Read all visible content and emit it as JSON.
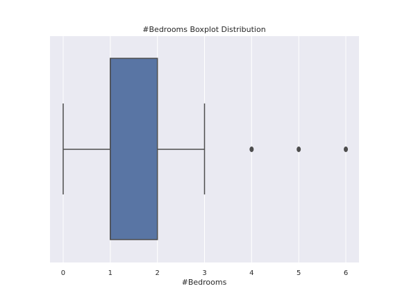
{
  "chart_data": {
    "type": "boxplot",
    "title": "#Bedrooms Boxplot Distribution",
    "xlabel": "#Bedrooms",
    "ylabel": "",
    "xlim": [
      -0.28,
      6.28
    ],
    "xticks": [
      0,
      1,
      2,
      3,
      4,
      5,
      6
    ],
    "xtick_labels": [
      "0",
      "1",
      "2",
      "3",
      "4",
      "5",
      "6"
    ],
    "grid": true,
    "background_color": "#eaeaf2",
    "grid_color": "#ffffff",
    "box_color": "#5975a4",
    "line_color": "#4d4d4d",
    "box": {
      "whisker_low": 0,
      "q1": 1,
      "median": 1,
      "q3": 2,
      "whisker_high": 3
    },
    "outliers": [
      4,
      5,
      6
    ]
  }
}
